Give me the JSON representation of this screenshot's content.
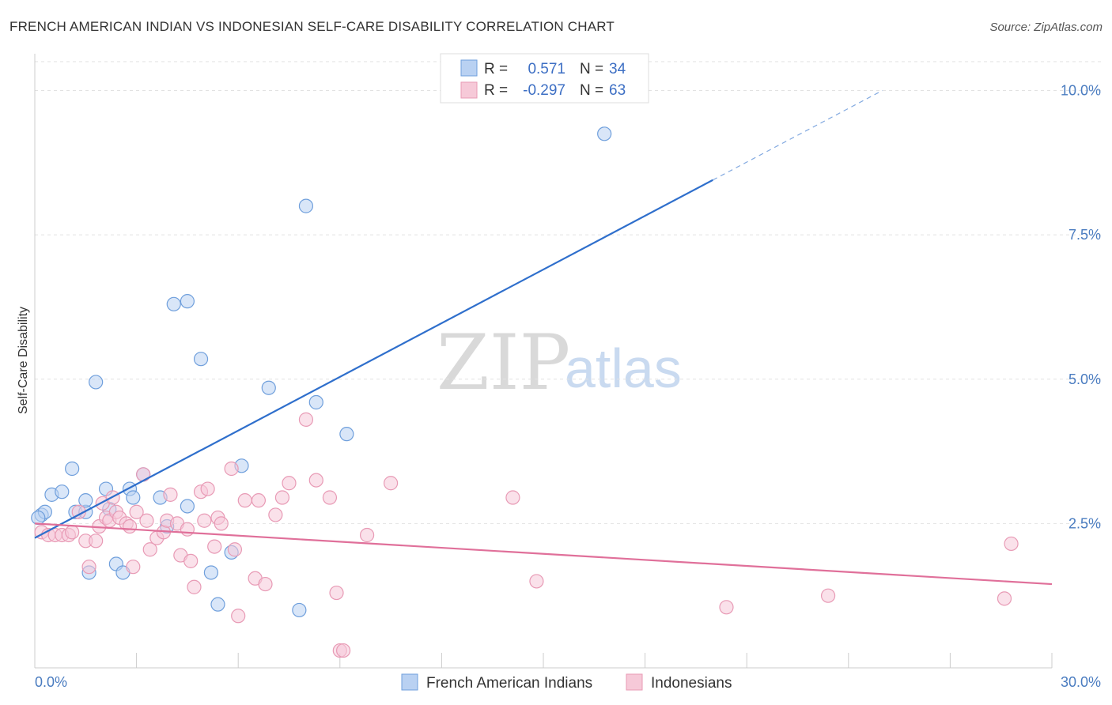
{
  "chart_data": {
    "type": "scatter",
    "title": "FRENCH AMERICAN INDIAN VS INDONESIAN SELF-CARE DISABILITY CORRELATION CHART",
    "source": "Source: ZipAtlas.com",
    "watermark": {
      "zip": "ZIP",
      "atlas": "atlas"
    },
    "ylabel": "Self-Care Disability",
    "xlim": [
      0,
      30
    ],
    "ylim": [
      0,
      10.5
    ],
    "x_tick_labels": {
      "min": "0.0%",
      "max": "30.0%"
    },
    "y_ticks": [
      {
        "value": 2.5,
        "label": "2.5%"
      },
      {
        "value": 5.0,
        "label": "5.0%"
      },
      {
        "value": 7.5,
        "label": "7.5%"
      },
      {
        "value": 10.0,
        "label": "10.0%"
      }
    ],
    "legend": {
      "r_label": "R =",
      "n_label": "N =",
      "entries": [
        {
          "r": "0.571",
          "n": "34"
        },
        {
          "r": "-0.297",
          "n": "63"
        }
      ]
    },
    "series": [
      {
        "name": "French American Indians",
        "color": "#6f9fdc",
        "fill": "#b9d1f2",
        "line_color": "#2f6fcc",
        "trend": {
          "x0": 0.0,
          "y0": 2.25,
          "x1": 20.0,
          "y1": 8.45,
          "dash_x1": 25.0,
          "dash_y1": 10.0
        },
        "points": [
          [
            0.2,
            2.65
          ],
          [
            0.3,
            2.7
          ],
          [
            0.5,
            3.0
          ],
          [
            0.8,
            3.05
          ],
          [
            1.1,
            3.45
          ],
          [
            1.2,
            2.7
          ],
          [
            1.5,
            2.7
          ],
          [
            1.5,
            2.9
          ],
          [
            1.6,
            1.65
          ],
          [
            1.8,
            4.95
          ],
          [
            2.1,
            3.1
          ],
          [
            2.2,
            2.75
          ],
          [
            2.4,
            1.8
          ],
          [
            2.6,
            1.65
          ],
          [
            2.8,
            3.1
          ],
          [
            2.9,
            2.95
          ],
          [
            3.2,
            3.35
          ],
          [
            3.7,
            2.95
          ],
          [
            3.9,
            2.45
          ],
          [
            4.1,
            6.3
          ],
          [
            4.5,
            6.35
          ],
          [
            4.5,
            2.8
          ],
          [
            4.9,
            5.35
          ],
          [
            5.2,
            1.65
          ],
          [
            5.4,
            1.1
          ],
          [
            5.8,
            2.0
          ],
          [
            6.1,
            3.5
          ],
          [
            6.9,
            4.85
          ],
          [
            7.8,
            1.0
          ],
          [
            8.0,
            8.0
          ],
          [
            8.3,
            4.6
          ],
          [
            9.2,
            4.05
          ],
          [
            16.8,
            9.25
          ],
          [
            0.1,
            2.6
          ]
        ]
      },
      {
        "name": "Indonesians",
        "color": "#e89ab5",
        "fill": "#f6c9d8",
        "line_color": "#e0709a",
        "trend": {
          "x0": 0.0,
          "y0": 2.5,
          "x1": 30.0,
          "y1": 1.45
        },
        "points": [
          [
            0.2,
            2.35
          ],
          [
            0.4,
            2.3
          ],
          [
            0.6,
            2.3
          ],
          [
            0.8,
            2.3
          ],
          [
            1.0,
            2.3
          ],
          [
            1.1,
            2.35
          ],
          [
            1.3,
            2.7
          ],
          [
            1.5,
            2.2
          ],
          [
            1.6,
            1.75
          ],
          [
            1.8,
            2.2
          ],
          [
            1.9,
            2.45
          ],
          [
            2.0,
            2.85
          ],
          [
            2.1,
            2.6
          ],
          [
            2.2,
            2.55
          ],
          [
            2.3,
            2.95
          ],
          [
            2.4,
            2.7
          ],
          [
            2.5,
            2.6
          ],
          [
            2.7,
            2.5
          ],
          [
            2.8,
            2.45
          ],
          [
            2.9,
            1.75
          ],
          [
            3.0,
            2.7
          ],
          [
            3.2,
            3.35
          ],
          [
            3.3,
            2.55
          ],
          [
            3.4,
            2.05
          ],
          [
            3.6,
            2.25
          ],
          [
            3.8,
            2.35
          ],
          [
            3.9,
            2.55
          ],
          [
            4.0,
            3.0
          ],
          [
            4.2,
            2.5
          ],
          [
            4.3,
            1.95
          ],
          [
            4.5,
            2.4
          ],
          [
            4.6,
            1.85
          ],
          [
            4.7,
            1.4
          ],
          [
            4.9,
            3.05
          ],
          [
            5.0,
            2.55
          ],
          [
            5.1,
            3.1
          ],
          [
            5.3,
            2.1
          ],
          [
            5.4,
            2.6
          ],
          [
            5.5,
            2.5
          ],
          [
            5.8,
            3.45
          ],
          [
            5.9,
            2.05
          ],
          [
            6.0,
            0.9
          ],
          [
            6.2,
            2.9
          ],
          [
            6.5,
            1.55
          ],
          [
            6.6,
            2.9
          ],
          [
            6.8,
            1.45
          ],
          [
            7.1,
            2.65
          ],
          [
            7.3,
            2.95
          ],
          [
            7.5,
            3.2
          ],
          [
            8.0,
            4.3
          ],
          [
            8.3,
            3.25
          ],
          [
            8.7,
            2.95
          ],
          [
            8.9,
            1.3
          ],
          [
            9.0,
            0.3
          ],
          [
            9.1,
            0.3
          ],
          [
            9.8,
            2.3
          ],
          [
            10.5,
            3.2
          ],
          [
            14.1,
            2.95
          ],
          [
            14.8,
            1.5
          ],
          [
            20.4,
            1.05
          ],
          [
            23.4,
            1.25
          ],
          [
            28.6,
            1.2
          ],
          [
            28.8,
            2.15
          ]
        ]
      }
    ]
  }
}
